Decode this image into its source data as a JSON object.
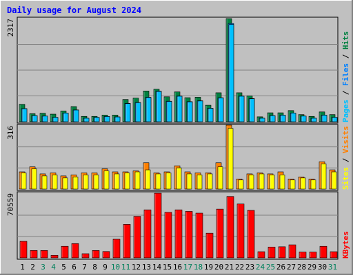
{
  "chart_data": {
    "type": "bar",
    "title": "Daily usage for August 2024",
    "categories": [
      "1",
      "2",
      "3",
      "4",
      "5",
      "6",
      "7",
      "8",
      "9",
      "10",
      "11",
      "12",
      "13",
      "14",
      "15",
      "16",
      "17",
      "18",
      "19",
      "20",
      "21",
      "22",
      "23",
      "24",
      "25",
      "26",
      "27",
      "28",
      "29",
      "30",
      "31"
    ],
    "weekend_days": [
      "3",
      "4",
      "10",
      "11",
      "17",
      "18",
      "24",
      "25",
      "31"
    ],
    "panels": [
      {
        "id": "hits",
        "ymax_label": "2317",
        "ymax": 2317,
        "series": [
          {
            "name": "Hits",
            "color": "#008040",
            "values": [
              390,
              180,
              190,
              170,
              240,
              340,
              120,
              120,
              150,
              150,
              500,
              530,
              690,
              730,
              560,
              670,
              540,
              550,
              370,
              650,
              2317,
              650,
              580,
              110,
              200,
              200,
              250,
              160,
              120,
              220,
              160
            ]
          },
          {
            "name": "Files",
            "color": "#0080ff",
            "values": [
              300,
              140,
              130,
              100,
              200,
              270,
              80,
              100,
              120,
              110,
              420,
              440,
              560,
              700,
              470,
              590,
              460,
              480,
              310,
              550,
              2250,
              590,
              530,
              80,
              140,
              150,
              200,
              130,
              80,
              150,
              100
            ]
          },
          {
            "name": "Pages",
            "color": "#00c0ff",
            "values": [
              300,
              140,
              130,
              100,
              200,
              270,
              80,
              100,
              120,
              110,
              420,
              440,
              560,
              700,
              470,
              590,
              460,
              480,
              310,
              550,
              2250,
              590,
              530,
              80,
              140,
              150,
              200,
              130,
              80,
              150,
              100
            ]
          }
        ],
        "legend": [
          "Pages",
          "Files",
          "Hits"
        ]
      },
      {
        "id": "visits",
        "ymax_label": "316",
        "ymax": 316,
        "series": [
          {
            "name": "Visits",
            "color": "#ff8000",
            "values": [
              85,
              110,
              75,
              80,
              65,
              70,
              80,
              80,
              100,
              85,
              85,
              90,
              130,
              80,
              85,
              115,
              85,
              80,
              80,
              130,
              316,
              50,
              75,
              80,
              75,
              85,
              50,
              60,
              50,
              135,
              95
            ]
          },
          {
            "name": "Sites",
            "color": "#ffff00",
            "values": [
              80,
              100,
              65,
              70,
              55,
              60,
              70,
              70,
              90,
              75,
              80,
              85,
              95,
              75,
              80,
              105,
              75,
              70,
              75,
              110,
              300,
              45,
              70,
              75,
              70,
              70,
              45,
              55,
              45,
              125,
              85
            ]
          }
        ],
        "legend": [
          "Sites",
          "Visits"
        ]
      },
      {
        "id": "kbytes",
        "ymax_label": "70559",
        "ymax": 70559,
        "series": [
          {
            "name": "KBytes",
            "color": "#ff0000",
            "values": [
              18000,
              8000,
              8000,
              2800,
              12600,
              15500,
              4500,
              8000,
              6900,
              20300,
              36500,
              45300,
              52400,
              70559,
              49700,
              52400,
              50700,
              48800,
              26900,
              53200,
              67000,
              58800,
              51800,
              6700,
              11800,
              12100,
              14200,
              6300,
              6300,
              12600,
              6700
            ]
          }
        ],
        "legend": [
          "KBytes"
        ]
      }
    ]
  }
}
